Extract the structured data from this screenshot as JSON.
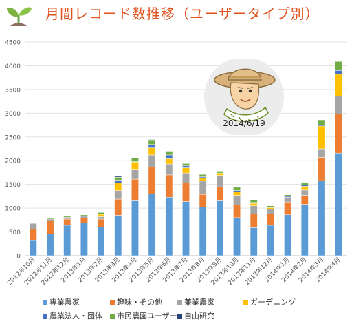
{
  "title": "月間レコード数推移（ユーザータイプ別）",
  "avatar": {
    "date": "2014/6/19"
  },
  "icons": {
    "logo": "sprout-icon",
    "avatar": "farmer-avatar-icon"
  },
  "chart_data": {
    "type": "bar",
    "stacked": true,
    "ylim": [
      0,
      4500
    ],
    "yticks": [
      0,
      500,
      1000,
      1500,
      2000,
      2500,
      3000,
      3500,
      4000,
      4500
    ],
    "grid": true,
    "legend_position": "bottom",
    "categories": [
      "2012年10月",
      "2012年11月",
      "2012年12月",
      "2013年1月",
      "2013年2月",
      "2013年3月",
      "2013年4月",
      "2013年5月",
      "2013年6月",
      "2013年7月",
      "2013年8月",
      "2013年9月",
      "2013年10月",
      "2013年11月",
      "2013年12月",
      "2014年1月",
      "2014年2月",
      "2014年3月",
      "2014年4月"
    ],
    "series": [
      {
        "name": "専業農家",
        "color": "#5b9bd5",
        "values": [
          320,
          460,
          640,
          690,
          600,
          850,
          1170,
          1300,
          1230,
          1140,
          1020,
          1170,
          800,
          590,
          640,
          860,
          1080,
          1580,
          2160
        ]
      },
      {
        "name": "趣味・その他",
        "color": "#ed7d31",
        "values": [
          240,
          270,
          130,
          100,
          170,
          340,
          440,
          570,
          470,
          390,
          270,
          280,
          270,
          290,
          240,
          270,
          190,
          490,
          820
        ]
      },
      {
        "name": "兼業農家",
        "color": "#a5a5a5",
        "values": [
          120,
          40,
          40,
          40,
          50,
          180,
          210,
          250,
          230,
          210,
          280,
          240,
          200,
          170,
          100,
          100,
          110,
          180,
          380
        ]
      },
      {
        "name": "ガーデニング",
        "color": "#ffc000",
        "values": [
          0,
          0,
          0,
          10,
          50,
          160,
          150,
          150,
          110,
          110,
          70,
          50,
          70,
          50,
          30,
          0,
          80,
          480,
          460
        ]
      },
      {
        "name": "農業法人・団体",
        "color": "#4472c4",
        "values": [
          0,
          0,
          0,
          0,
          10,
          60,
          10,
          70,
          80,
          40,
          20,
          0,
          30,
          20,
          0,
          20,
          30,
          20,
          80
        ]
      },
      {
        "name": "市民農園ユーザー",
        "color": "#70ad47",
        "values": [
          20,
          20,
          20,
          20,
          30,
          60,
          80,
          100,
          80,
          50,
          50,
          40,
          70,
          60,
          40,
          30,
          50,
          110,
          190
        ]
      },
      {
        "name": "自由研究",
        "color": "#264478",
        "values": [
          0,
          0,
          0,
          0,
          0,
          20,
          0,
          10,
          0,
          0,
          0,
          0,
          10,
          0,
          0,
          0,
          0,
          0,
          0
        ]
      }
    ]
  }
}
